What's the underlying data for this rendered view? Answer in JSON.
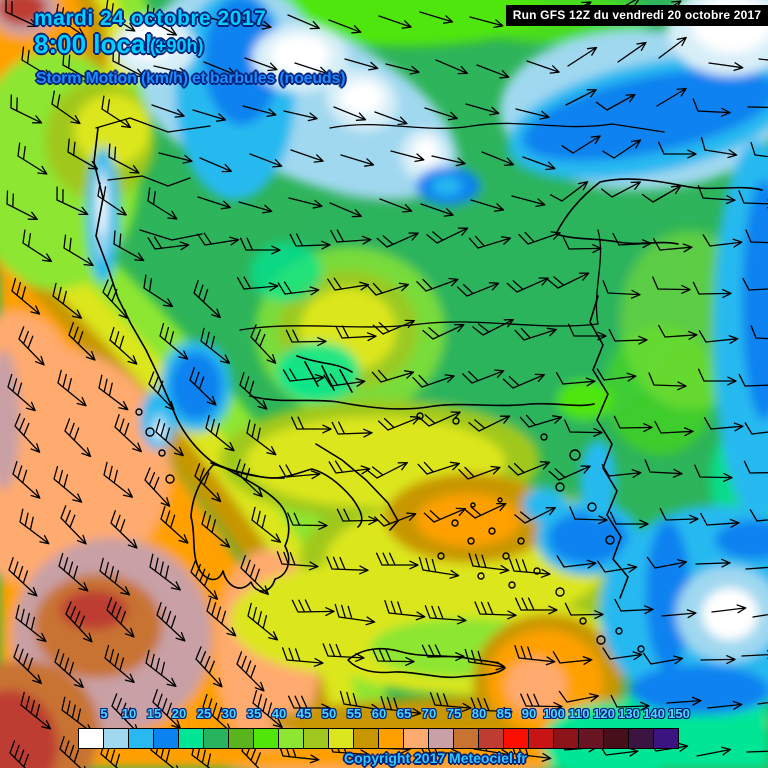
{
  "header": {
    "date": "mardi 24 octobre 2017",
    "time": "8:00 locale",
    "forecast_offset": "(+90h)",
    "parameter": "Storm Motion (km/h) et barbules (noeuds)",
    "run_info": "Run GFS 12Z du vendredi 20 octobre 2017"
  },
  "footer": {
    "copyright": "Copyright 2017 Meteociel.fr"
  },
  "legend": {
    "unit_values": [
      5,
      10,
      15,
      20,
      25,
      30,
      35,
      40,
      45,
      50,
      55,
      60,
      65,
      70,
      75,
      80,
      85,
      90,
      100,
      110,
      120,
      130,
      140,
      150
    ],
    "colors": [
      "#FFFFFF",
      "#A0D8F0",
      "#28B9F0",
      "#0A82F0",
      "#00E695",
      "#28B45F",
      "#5AB41E",
      "#50E60A",
      "#8CE632",
      "#A0C81E",
      "#DCE61E",
      "#C89600",
      "#FFA000",
      "#FFAA6E",
      "#C8A0A5",
      "#C87332",
      "#BE3C32",
      "#FA0F00",
      "#C81414",
      "#8C1419",
      "#691423",
      "#460F19",
      "#3C1441",
      "#3C1482"
    ]
  },
  "style_colors": {
    "text_cyan": "#00CFFF",
    "text_blue": "#1C8CFF",
    "outline_navy": "#06227A",
    "banner_bg": "#000000",
    "banner_text": "#FFFFFF"
  }
}
